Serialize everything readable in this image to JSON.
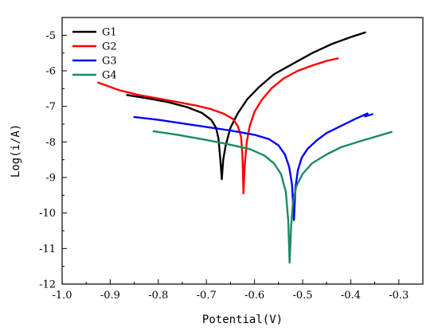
{
  "chart_data": {
    "type": "line",
    "xlabel": "Potential(V)",
    "ylabel": "Log(i/A)",
    "xlim": [
      -1.0,
      -0.25
    ],
    "ylim": [
      -12,
      -4.5
    ],
    "xticks": [
      -1.0,
      -0.9,
      -0.8,
      -0.7,
      -0.6,
      -0.5,
      -0.4,
      -0.3
    ],
    "xtick_labels": [
      "-1.0",
      "-0.9",
      "-0.8",
      "-0.7",
      "-0.6",
      "-0.5",
      "-0.4",
      "-0.3"
    ],
    "yticks": [
      -12,
      -11,
      -10,
      -9,
      -8,
      -7,
      -6,
      -5
    ],
    "ytick_labels": [
      "-12",
      "-11",
      "-10",
      "-9",
      "-8",
      "-7",
      "-6",
      "-5"
    ],
    "grid": false,
    "legend_position": "top-left",
    "series": [
      {
        "name": "G1",
        "color": "#000000",
        "points": [
          [
            -0.865,
            -6.68
          ],
          [
            -0.82,
            -6.78
          ],
          [
            -0.78,
            -6.88
          ],
          [
            -0.74,
            -7.02
          ],
          [
            -0.71,
            -7.18
          ],
          [
            -0.69,
            -7.38
          ],
          [
            -0.68,
            -7.6
          ],
          [
            -0.675,
            -7.9
          ],
          [
            -0.671,
            -8.5
          ],
          [
            -0.668,
            -9.05
          ],
          [
            -0.665,
            -8.5
          ],
          [
            -0.66,
            -8.1
          ],
          [
            -0.65,
            -7.6
          ],
          [
            -0.635,
            -7.2
          ],
          [
            -0.615,
            -6.8
          ],
          [
            -0.59,
            -6.45
          ],
          [
            -0.56,
            -6.1
          ],
          [
            -0.52,
            -5.8
          ],
          [
            -0.48,
            -5.5
          ],
          [
            -0.44,
            -5.25
          ],
          [
            -0.4,
            -5.05
          ],
          [
            -0.37,
            -4.92
          ]
        ]
      },
      {
        "name": "G2",
        "color": "#ff0000",
        "points": [
          [
            -0.925,
            -6.33
          ],
          [
            -0.88,
            -6.55
          ],
          [
            -0.84,
            -6.68
          ],
          [
            -0.8,
            -6.78
          ],
          [
            -0.76,
            -6.88
          ],
          [
            -0.72,
            -6.98
          ],
          [
            -0.69,
            -7.08
          ],
          [
            -0.665,
            -7.2
          ],
          [
            -0.645,
            -7.35
          ],
          [
            -0.635,
            -7.55
          ],
          [
            -0.628,
            -7.85
          ],
          [
            -0.625,
            -8.4
          ],
          [
            -0.623,
            -9.45
          ],
          [
            -0.62,
            -8.6
          ],
          [
            -0.616,
            -8.0
          ],
          [
            -0.61,
            -7.55
          ],
          [
            -0.6,
            -7.15
          ],
          [
            -0.585,
            -6.82
          ],
          [
            -0.565,
            -6.5
          ],
          [
            -0.54,
            -6.22
          ],
          [
            -0.51,
            -6.0
          ],
          [
            -0.48,
            -5.85
          ],
          [
            -0.45,
            -5.72
          ],
          [
            -0.427,
            -5.65
          ]
        ]
      },
      {
        "name": "G3",
        "color": "#0000ff",
        "points": [
          [
            -0.85,
            -7.3
          ],
          [
            -0.8,
            -7.38
          ],
          [
            -0.75,
            -7.48
          ],
          [
            -0.7,
            -7.58
          ],
          [
            -0.65,
            -7.68
          ],
          [
            -0.6,
            -7.8
          ],
          [
            -0.57,
            -7.92
          ],
          [
            -0.55,
            -8.1
          ],
          [
            -0.537,
            -8.35
          ],
          [
            -0.528,
            -8.7
          ],
          [
            -0.522,
            -9.2
          ],
          [
            -0.518,
            -10.2
          ],
          [
            -0.515,
            -9.3
          ],
          [
            -0.51,
            -8.8
          ],
          [
            -0.502,
            -8.45
          ],
          [
            -0.49,
            -8.2
          ],
          [
            -0.47,
            -7.95
          ],
          [
            -0.45,
            -7.75
          ],
          [
            -0.42,
            -7.55
          ],
          [
            -0.39,
            -7.35
          ],
          [
            -0.365,
            -7.2
          ],
          [
            -0.37,
            -7.28
          ],
          [
            -0.355,
            -7.22
          ]
        ]
      },
      {
        "name": "G4",
        "color": "#1a8a62",
        "points": [
          [
            -0.81,
            -7.7
          ],
          [
            -0.76,
            -7.8
          ],
          [
            -0.71,
            -7.92
          ],
          [
            -0.66,
            -8.05
          ],
          [
            -0.61,
            -8.2
          ],
          [
            -0.58,
            -8.38
          ],
          [
            -0.56,
            -8.6
          ],
          [
            -0.545,
            -8.9
          ],
          [
            -0.535,
            -9.4
          ],
          [
            -0.53,
            -10.2
          ],
          [
            -0.527,
            -11.4
          ],
          [
            -0.524,
            -10.4
          ],
          [
            -0.52,
            -9.7
          ],
          [
            -0.513,
            -9.25
          ],
          [
            -0.5,
            -8.9
          ],
          [
            -0.48,
            -8.6
          ],
          [
            -0.45,
            -8.35
          ],
          [
            -0.42,
            -8.15
          ],
          [
            -0.38,
            -7.98
          ],
          [
            -0.34,
            -7.82
          ],
          [
            -0.315,
            -7.72
          ]
        ]
      }
    ]
  }
}
